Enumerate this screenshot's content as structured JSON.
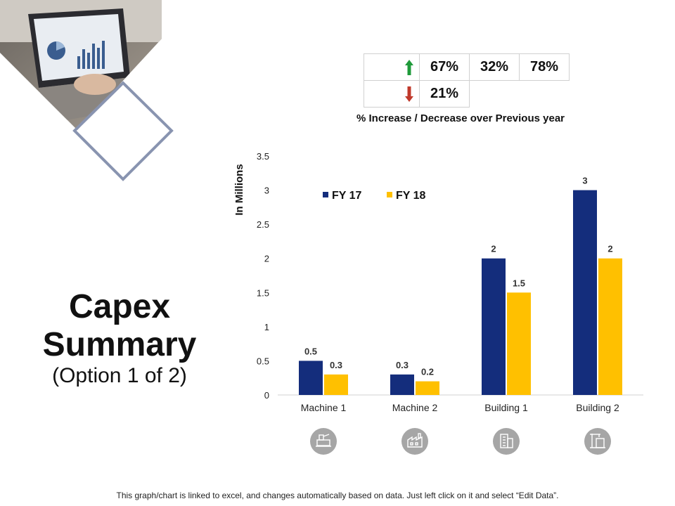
{
  "title": {
    "main": [
      "Capex",
      "Summary"
    ],
    "subtitle": "(Option 1 of 2)"
  },
  "stats": {
    "up_icon": "arrow-up-icon",
    "down_icon": "arrow-down-icon",
    "up_color": "#1f9a3a",
    "down_color": "#c0392b",
    "increase_values": [
      "67%",
      "32%",
      "78%"
    ],
    "decrease_values": [
      "21%"
    ],
    "caption": "% Increase / Decrease over Previous year"
  },
  "category_icons": [
    "machine-icon",
    "factory-icon",
    "building-icon",
    "building-crane-icon"
  ],
  "chart_data": {
    "type": "bar",
    "categories": [
      "Machine 1",
      "Machine 2",
      "Building 1",
      "Building 2"
    ],
    "series": [
      {
        "name": "FY 17",
        "color": "#142d7c",
        "values": [
          0.5,
          0.3,
          2,
          3
        ],
        "labels": [
          "0.5",
          "0.3",
          "2",
          "3"
        ]
      },
      {
        "name": "FY 18",
        "color": "#ffc000",
        "values": [
          0.3,
          0.2,
          1.5,
          2
        ],
        "labels": [
          "0.3",
          "0.2",
          "1.5",
          "2"
        ]
      }
    ],
    "ylabel": "In Millions",
    "ylim": [
      0,
      3.5
    ],
    "yticks": [
      "0",
      "0.5",
      "1",
      "1.5",
      "2",
      "2.5",
      "3",
      "3.5"
    ],
    "grid": false,
    "legend_position": "top-left"
  },
  "footnote": "This graph/chart is linked to excel, and changes automatically based on data. Just left click on it and select “Edit Data”."
}
